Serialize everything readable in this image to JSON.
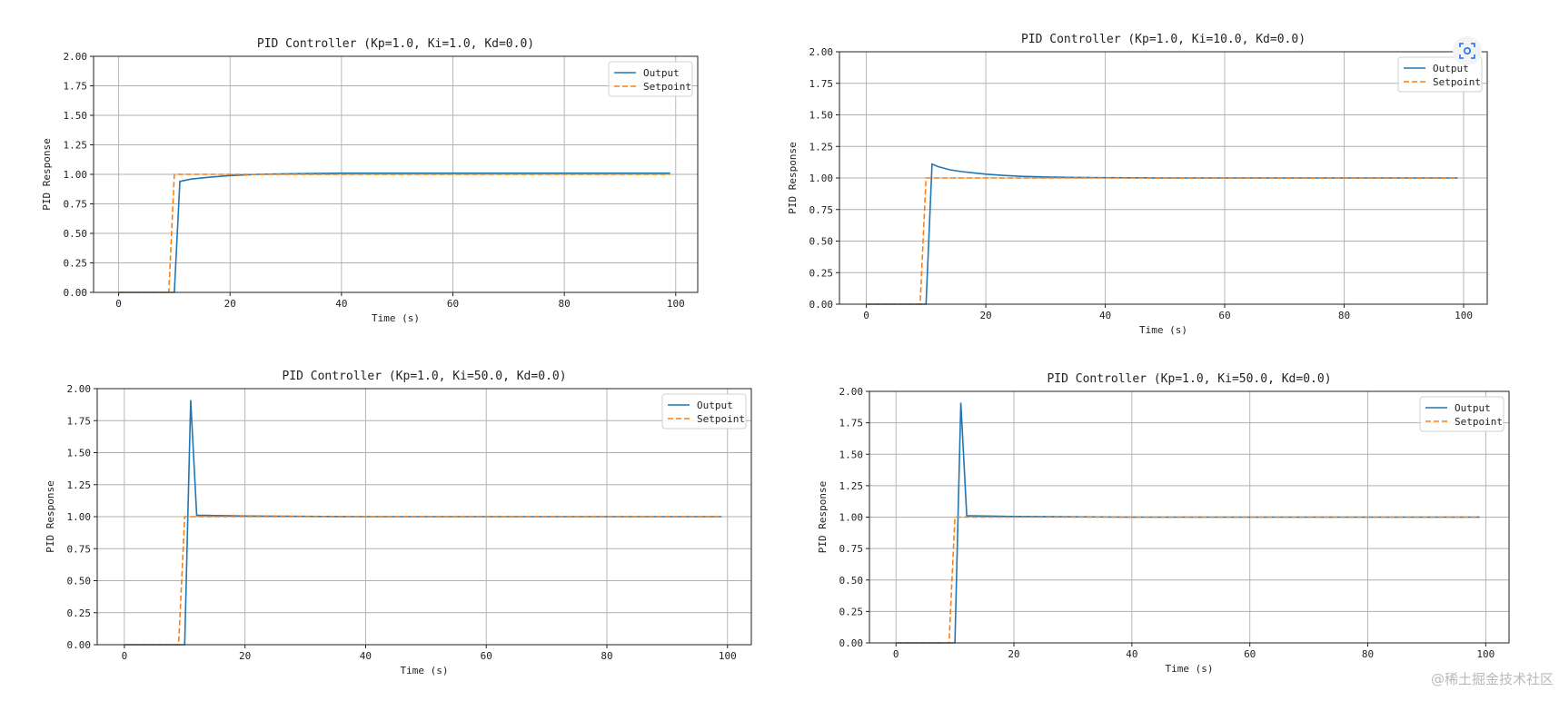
{
  "watermark": "@稀土掘金技术社区",
  "colors": {
    "output": "#1f77b4",
    "setpoint": "#ff7f0e",
    "grid": "#b0b0b0",
    "accent": "#1a73e8"
  },
  "icons": {
    "lens": "image-search-icon"
  },
  "chart_data": [
    {
      "type": "line",
      "title": "PID Controller (Kp=1.0, Ki=1.0, Kd=0.0)",
      "xlabel": "Time (s)",
      "ylabel": "PID Response",
      "xlim": [
        -4.5,
        103.95
      ],
      "ylim": [
        0,
        2
      ],
      "xticks": [
        "0",
        "20",
        "40",
        "60",
        "80",
        "100"
      ],
      "yticks": [
        "0.00",
        "0.25",
        "0.50",
        "0.75",
        "1.00",
        "1.25",
        "1.50",
        "1.75",
        "2.00"
      ],
      "grid": true,
      "legend": "top-right",
      "series": [
        {
          "name": "Output",
          "style": "solid",
          "x": [
            0,
            10,
            11,
            13,
            16,
            20,
            25,
            30,
            40,
            50,
            60,
            70,
            80,
            90,
            99
          ],
          "y": [
            0,
            0,
            0.94,
            0.96,
            0.975,
            0.99,
            1.0,
            1.005,
            1.01,
            1.01,
            1.01,
            1.01,
            1.01,
            1.01,
            1.01
          ]
        },
        {
          "name": "Setpoint",
          "style": "dashed",
          "x": [
            0,
            9,
            10,
            99
          ],
          "y": [
            0,
            0,
            1,
            1
          ]
        }
      ]
    },
    {
      "type": "line",
      "title": "PID Controller (Kp=1.0, Ki=10.0, Kd=0.0)",
      "xlabel": "Time (s)",
      "ylabel": "PID Response",
      "xlim": [
        -4.5,
        103.95
      ],
      "ylim": [
        0,
        2
      ],
      "xticks": [
        "0",
        "20",
        "40",
        "60",
        "80",
        "100"
      ],
      "yticks": [
        "0.00",
        "0.25",
        "0.50",
        "0.75",
        "1.00",
        "1.25",
        "1.50",
        "1.75",
        "2.00"
      ],
      "grid": true,
      "legend": "top-right",
      "series": [
        {
          "name": "Output",
          "style": "solid",
          "x": [
            0,
            10,
            11,
            12,
            14,
            16,
            18,
            20,
            23,
            26,
            30,
            35,
            40,
            50,
            60,
            70,
            80,
            90,
            99
          ],
          "y": [
            0,
            0,
            1.11,
            1.09,
            1.065,
            1.05,
            1.04,
            1.03,
            1.02,
            1.013,
            1.008,
            1.004,
            1.002,
            1.0,
            1.0,
            1.0,
            1.0,
            1.0,
            1.0
          ]
        },
        {
          "name": "Setpoint",
          "style": "dashed",
          "x": [
            0,
            9,
            10,
            99
          ],
          "y": [
            0,
            0,
            1,
            1
          ]
        }
      ]
    },
    {
      "type": "line",
      "title": "PID Controller (Kp=1.0, Ki=50.0, Kd=0.0)",
      "xlabel": "Time (s)",
      "ylabel": "PID Response",
      "xlim": [
        -4.5,
        103.95
      ],
      "ylim": [
        0,
        2
      ],
      "xticks": [
        "0",
        "20",
        "40",
        "60",
        "80",
        "100"
      ],
      "yticks": [
        "0.00",
        "0.25",
        "0.50",
        "0.75",
        "1.00",
        "1.25",
        "1.50",
        "1.75",
        "2.00"
      ],
      "grid": true,
      "legend": "top-right",
      "series": [
        {
          "name": "Output",
          "style": "solid",
          "x": [
            0,
            10,
            11,
            12,
            13,
            20,
            40,
            60,
            80,
            99
          ],
          "y": [
            0,
            0,
            1.91,
            1.01,
            1.01,
            1.005,
            1.0,
            1.0,
            1.0,
            1.0
          ]
        },
        {
          "name": "Setpoint",
          "style": "dashed",
          "x": [
            0,
            9,
            10,
            99
          ],
          "y": [
            0,
            0,
            1,
            1
          ]
        }
      ]
    },
    {
      "type": "line",
      "title": "PID Controller (Kp=1.0, Ki=50.0, Kd=0.0)",
      "xlabel": "Time (s)",
      "ylabel": "PID Response",
      "xlim": [
        -4.5,
        103.95
      ],
      "ylim": [
        0,
        2
      ],
      "xticks": [
        "0",
        "20",
        "40",
        "60",
        "80",
        "100"
      ],
      "yticks": [
        "0.00",
        "0.25",
        "0.50",
        "0.75",
        "1.00",
        "1.25",
        "1.50",
        "1.75",
        "2.00"
      ],
      "grid": true,
      "legend": "top-right",
      "series": [
        {
          "name": "Output",
          "style": "solid",
          "x": [
            0,
            10,
            11,
            12,
            13,
            20,
            40,
            60,
            80,
            99
          ],
          "y": [
            0,
            0,
            1.91,
            1.01,
            1.01,
            1.005,
            1.0,
            1.0,
            1.0,
            1.0
          ]
        },
        {
          "name": "Setpoint",
          "style": "dashed",
          "x": [
            0,
            9,
            10,
            99
          ],
          "y": [
            0,
            0,
            1,
            1
          ]
        }
      ]
    }
  ]
}
